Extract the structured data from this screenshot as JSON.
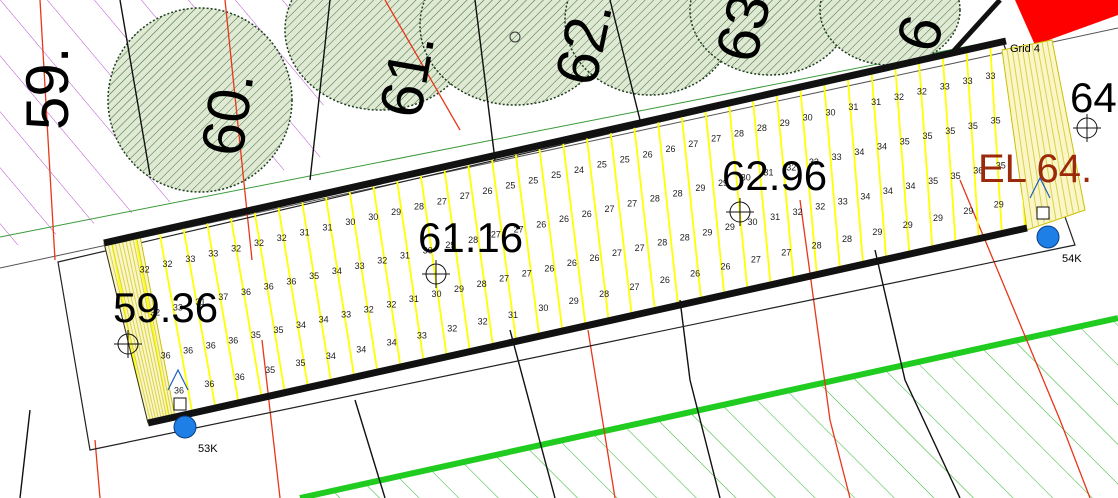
{
  "colors": {
    "strip": "#ffff00",
    "red_line": "#e8361a",
    "tree_fill": "#d5e2c8",
    "tree_hatch": "#2e6b2e",
    "purple": "#b84fd1",
    "green_band": "#1fcc1f",
    "node_blue": "#1e7fe6",
    "el_text": "#9c2a0a",
    "red_fill": "#ff0000"
  },
  "lot_numbers": [
    "59.",
    "60.",
    "61.",
    "62.",
    "63.",
    "6"
  ],
  "lot_edge": "64",
  "elevations": [
    "59.36",
    "61.16",
    "62.96"
  ],
  "el_label": "EL 64.",
  "grid_label": "Grid 4",
  "nodes": [
    "53K",
    "54K"
  ],
  "pier_row_values": [
    [
      "32",
      "32",
      "33",
      "33",
      "32",
      "32",
      "32",
      "31",
      "31",
      "30",
      "30",
      "29",
      "28",
      "27",
      "27",
      "26",
      "25",
      "25",
      "25",
      "24",
      "25",
      "25",
      "26",
      "26",
      "27",
      "27",
      "28",
      "28",
      "29",
      "30",
      "30",
      "31",
      "31",
      "32",
      "32",
      "33",
      "33",
      "33"
    ],
    [
      "32",
      "33",
      "31",
      "37",
      "36",
      "36",
      "36",
      "35",
      "34",
      "33",
      "32",
      "31",
      "30",
      "29",
      "28",
      "27",
      "27",
      "26",
      "26",
      "26",
      "27",
      "27",
      "28",
      "28",
      "29",
      "29",
      "30",
      "31",
      "32",
      "33",
      "33",
      "34",
      "34",
      "35",
      "35",
      "35",
      "35",
      "35"
    ],
    [
      "36",
      "36",
      "36",
      "36",
      "35",
      "35",
      "34",
      "34",
      "33",
      "32",
      "32",
      "31",
      "30",
      "29",
      "28",
      "27",
      "27",
      "26",
      "26",
      "26",
      "27",
      "27",
      "28",
      "28",
      "29",
      "29",
      "30",
      "31",
      "32",
      "32",
      "33",
      "34",
      "34",
      "34",
      "35",
      "35",
      "36",
      "35"
    ],
    [
      "36",
      "36",
      "36",
      "35",
      "35",
      "34",
      "34",
      "34",
      "33",
      "32",
      "32",
      "31",
      "30",
      "29",
      "28",
      "27",
      "26",
      "26",
      "26",
      "27",
      "27",
      "28",
      "28",
      "29",
      "29",
      "29",
      "29",
      "29"
    ]
  ],
  "marker_values": [
    "32",
    "31",
    "30",
    "29",
    "30",
    "31"
  ]
}
